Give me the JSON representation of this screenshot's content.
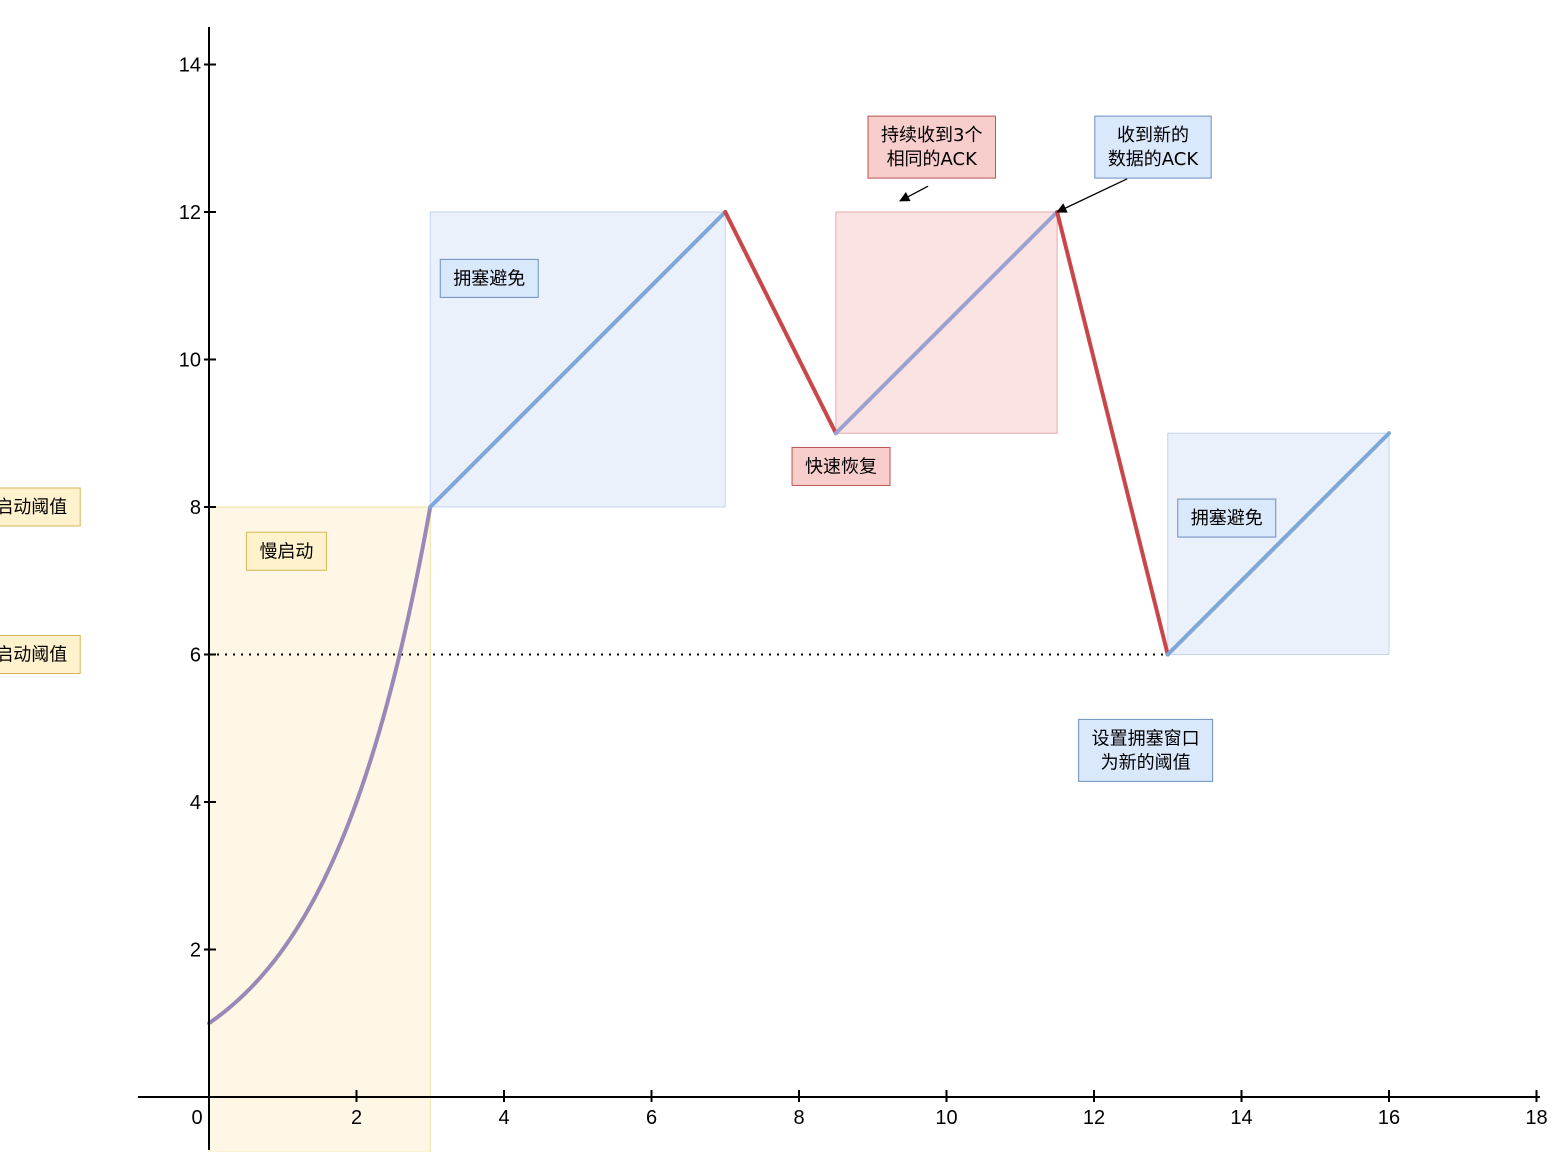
{
  "chart_data": {
    "type": "line",
    "title": "",
    "xlabel": "",
    "ylabel": "",
    "xlim": [
      -1,
      18
    ],
    "ylim": [
      -0.75,
      14.5
    ],
    "x_ticks": [
      0,
      2,
      4,
      6,
      8,
      10,
      12,
      14,
      16,
      18
    ],
    "x_tick_labels": [
      "0",
      "2",
      "4",
      "6",
      "8",
      "10",
      "12",
      "14",
      "16",
      "18"
    ],
    "y_ticks": [
      2,
      4,
      6,
      8,
      10,
      12,
      14
    ],
    "y_tick_labels": [
      "2",
      "4",
      "6",
      "8",
      "10",
      "12",
      "14"
    ],
    "grid": false,
    "legend": "none",
    "series": [
      {
        "phase": "slow-start",
        "color": "#9b88b7",
        "curve": "exponential",
        "x": [
          0,
          0.25,
          0.5,
          0.75,
          1,
          1.25,
          1.5,
          1.75,
          2,
          2.25,
          2.5,
          2.75,
          3
        ],
        "y": [
          1,
          1.19,
          1.41,
          1.68,
          2,
          2.38,
          2.83,
          3.36,
          4,
          4.76,
          5.66,
          6.73,
          8
        ]
      },
      {
        "phase": "congestion-avoidance",
        "color": "#7ea6d8",
        "x": [
          3,
          7
        ],
        "y": [
          8,
          12
        ]
      },
      {
        "phase": "drop",
        "color": "#c9464a",
        "x": [
          7,
          8.5
        ],
        "y": [
          12,
          9
        ]
      },
      {
        "phase": "fast-recovery",
        "color": "#9aa3cf",
        "x": [
          8.5,
          11.5
        ],
        "y": [
          9,
          12
        ]
      },
      {
        "phase": "drop",
        "color": "#c9464a",
        "x": [
          11.5,
          13
        ],
        "y": [
          12,
          6
        ]
      },
      {
        "phase": "congestion-avoidance",
        "color": "#7ea6d8",
        "x": [
          13,
          16
        ],
        "y": [
          6,
          9
        ]
      }
    ],
    "regions": [
      {
        "x": [
          0,
          3
        ],
        "y": [
          -0.75,
          8
        ],
        "fill": "#fff7e6",
        "stroke": "#f2e2a0"
      },
      {
        "x": [
          3,
          7
        ],
        "y": [
          8,
          12
        ],
        "fill": "#ebf1fb",
        "stroke": "#c3d4ee"
      },
      {
        "x": [
          8.5,
          11.5
        ],
        "y": [
          9,
          12
        ],
        "fill": "#fbe3e3",
        "stroke": "#e7a9a9"
      },
      {
        "x": [
          13,
          16
        ],
        "y": [
          6,
          9
        ],
        "fill": "#ebf1fb",
        "stroke": "#c3d4ee"
      }
    ],
    "threshold_line": {
      "y": 6,
      "x": [
        0,
        13
      ],
      "style": "dotted"
    },
    "annotations": [
      {
        "lines": [
          "(旧)慢启动阈值"
        ],
        "theme": "yellow",
        "x": -2.75,
        "y": 8
      },
      {
        "lines": [
          "(新)慢启动阈值"
        ],
        "theme": "yellow",
        "x": -2.75,
        "y": 6
      },
      {
        "lines": [
          "慢启动"
        ],
        "theme": "yellow",
        "x": 1.05,
        "y": 7.4
      },
      {
        "lines": [
          "拥塞避免"
        ],
        "theme": "blue",
        "x": 3.8,
        "y": 11.1
      },
      {
        "lines": [
          "拥塞避免"
        ],
        "theme": "blue",
        "x": 13.8,
        "y": 7.85
      },
      {
        "lines": [
          "快速恢复"
        ],
        "theme": "red",
        "x": 8.57,
        "y": 8.55
      },
      {
        "lines": [
          "持续收到3个",
          "相同的ACK"
        ],
        "theme": "red",
        "x": 9.8,
        "y": 12.88
      },
      {
        "lines": [
          "收到新的",
          "数据的ACK"
        ],
        "theme": "blue",
        "x": 12.8,
        "y": 12.88
      },
      {
        "lines": [
          "设置拥塞窗口",
          "为新的阈值"
        ],
        "theme": "blue",
        "x": 12.7,
        "y": 4.7
      }
    ],
    "arrows": [
      {
        "from": [
          9.75,
          12.35
        ],
        "to": [
          9.37,
          12.15
        ]
      },
      {
        "from": [
          12.45,
          12.45
        ],
        "to": [
          11.5,
          12
        ]
      }
    ]
  }
}
